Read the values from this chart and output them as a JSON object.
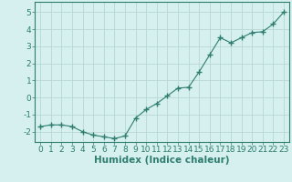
{
  "x": [
    0,
    1,
    2,
    3,
    4,
    5,
    6,
    7,
    8,
    9,
    10,
    11,
    12,
    13,
    14,
    15,
    16,
    17,
    18,
    19,
    20,
    21,
    22,
    23
  ],
  "y": [
    -1.7,
    -1.6,
    -1.6,
    -1.7,
    -2.0,
    -2.2,
    -2.3,
    -2.4,
    -2.25,
    -1.2,
    -0.7,
    -0.35,
    0.1,
    0.55,
    0.6,
    1.5,
    2.5,
    3.5,
    3.2,
    3.5,
    3.8,
    3.85,
    4.3,
    5.0
  ],
  "line_color": "#2e7d70",
  "marker": "+",
  "marker_size": 4,
  "bg_color": "#d5f0ee",
  "grid_color": "#b8d8d4",
  "tick_color": "#2e7d70",
  "label_color": "#2e7d70",
  "xlabel": "Humidex (Indice chaleur)",
  "ylim": [
    -2.6,
    5.6
  ],
  "xlim": [
    -0.5,
    23.5
  ],
  "yticks": [
    -2,
    -1,
    0,
    1,
    2,
    3,
    4,
    5
  ],
  "xticks": [
    0,
    1,
    2,
    3,
    4,
    5,
    6,
    7,
    8,
    9,
    10,
    11,
    12,
    13,
    14,
    15,
    16,
    17,
    18,
    19,
    20,
    21,
    22,
    23
  ],
  "font_size": 6.5,
  "xlabel_font_size": 7.5
}
